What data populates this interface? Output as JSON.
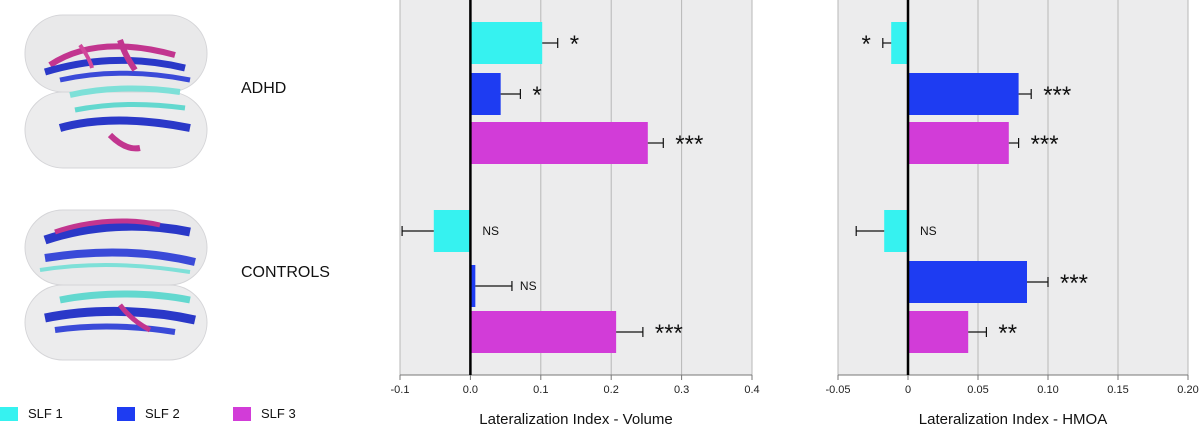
{
  "groups": [
    "ADHD",
    "CONTROLS"
  ],
  "legend": [
    {
      "label": "SLF 1",
      "color": "#36F2F0"
    },
    {
      "label": "SLF 2",
      "color": "#1E3CF2"
    },
    {
      "label": "SLF 3",
      "color": "#D23CD8"
    }
  ],
  "chart_data": [
    {
      "type": "bar",
      "orientation": "horizontal",
      "xlabel": "Lateralization Index - Volume",
      "xlim": [
        -0.1,
        0.4
      ],
      "ticks": [
        "-0.1",
        "0.0",
        "0.1",
        "0.2",
        "0.3",
        "0.4"
      ],
      "tick_values": [
        -0.1,
        0.0,
        0.1,
        0.2,
        0.3,
        0.4
      ],
      "grid": true,
      "bars": [
        {
          "group": "ADHD",
          "series": "SLF 1",
          "value": 0.102,
          "error": 0.022,
          "sig": "*"
        },
        {
          "group": "ADHD",
          "series": "SLF 2",
          "value": 0.043,
          "error": 0.028,
          "sig": "*"
        },
        {
          "group": "ADHD",
          "series": "SLF 3",
          "value": 0.252,
          "error": 0.022,
          "sig": "***"
        },
        {
          "group": "CONTROLS",
          "series": "SLF 1",
          "value": -0.052,
          "error": 0.045,
          "sig": "NS"
        },
        {
          "group": "CONTROLS",
          "series": "SLF 2",
          "value": 0.007,
          "error": 0.052,
          "sig": "NS"
        },
        {
          "group": "CONTROLS",
          "series": "SLF 3",
          "value": 0.207,
          "error": 0.038,
          "sig": "***"
        }
      ]
    },
    {
      "type": "bar",
      "orientation": "horizontal",
      "xlabel": "Lateralization Index - HMOA",
      "xlim": [
        -0.05,
        0.2
      ],
      "ticks": [
        "-0.05",
        "0",
        "0.05",
        "0.10",
        "0.15",
        "0.20"
      ],
      "tick_values": [
        -0.05,
        0.0,
        0.05,
        0.1,
        0.15,
        0.2
      ],
      "grid": true,
      "bars": [
        {
          "group": "ADHD",
          "series": "SLF 1",
          "value": -0.012,
          "error": 0.006,
          "sig": "*"
        },
        {
          "group": "ADHD",
          "series": "SLF 2",
          "value": 0.079,
          "error": 0.009,
          "sig": "***"
        },
        {
          "group": "ADHD",
          "series": "SLF 3",
          "value": 0.072,
          "error": 0.007,
          "sig": "***"
        },
        {
          "group": "CONTROLS",
          "series": "SLF 1",
          "value": -0.017,
          "error": 0.02,
          "sig": "NS"
        },
        {
          "group": "CONTROLS",
          "series": "SLF 2",
          "value": 0.085,
          "error": 0.015,
          "sig": "***"
        },
        {
          "group": "CONTROLS",
          "series": "SLF 3",
          "value": 0.043,
          "error": 0.013,
          "sig": "**"
        }
      ]
    }
  ]
}
